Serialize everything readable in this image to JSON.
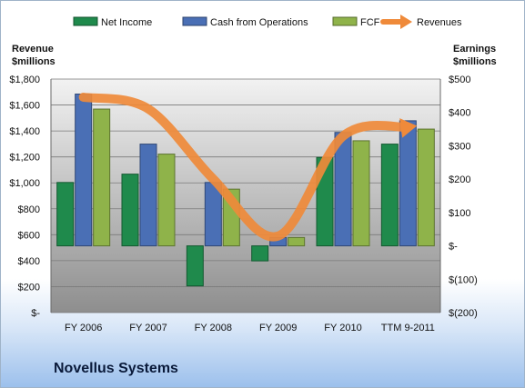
{
  "chart_data": {
    "type": "bar",
    "categories": [
      "FY 2006",
      "FY 2007",
      "FY 2008",
      "FY 2009",
      "FY 2010",
      "TTM 9-2011"
    ],
    "series": [
      {
        "name": "Net Income",
        "axis": "right",
        "type": "bar",
        "color": "#1f8a4c",
        "values": [
          190,
          215,
          -120,
          -45,
          265,
          305
        ]
      },
      {
        "name": "Cash from Operations",
        "axis": "right",
        "type": "bar",
        "color": "#4a6fb5",
        "values": [
          455,
          305,
          190,
          25,
          340,
          375
        ]
      },
      {
        "name": "FCF",
        "axis": "right",
        "type": "bar",
        "color": "#8fb34a",
        "values": [
          410,
          275,
          170,
          25,
          315,
          350
        ]
      },
      {
        "name": "Revenues",
        "axis": "left",
        "type": "line",
        "color": "#ef8a3a",
        "values": [
          1660,
          1570,
          1030,
          590,
          1360,
          1430
        ]
      }
    ],
    "left_axis": {
      "title_line1": "Revenue",
      "title_line2": "$millions",
      "range": [
        0,
        1800
      ],
      "ticks": [
        0,
        200,
        400,
        600,
        800,
        1000,
        1200,
        1400,
        1600,
        1800
      ],
      "tick_labels": [
        "$-",
        "$200",
        "$400",
        "$600",
        "$800",
        "$1,000",
        "$1,200",
        "$1,400",
        "$1,600",
        "$1,800"
      ]
    },
    "right_axis": {
      "title_line1": "Earnings",
      "title_line2": "$millions",
      "range": [
        -200,
        500
      ],
      "ticks": [
        -200,
        -100,
        0,
        100,
        200,
        300,
        400,
        500
      ],
      "tick_labels": [
        "$(200)",
        "$(100)",
        "$-",
        "$100",
        "$200",
        "$300",
        "$400",
        "$500"
      ]
    },
    "legend_position": "top",
    "grid": true,
    "footer_title": "Novellus Systems"
  }
}
